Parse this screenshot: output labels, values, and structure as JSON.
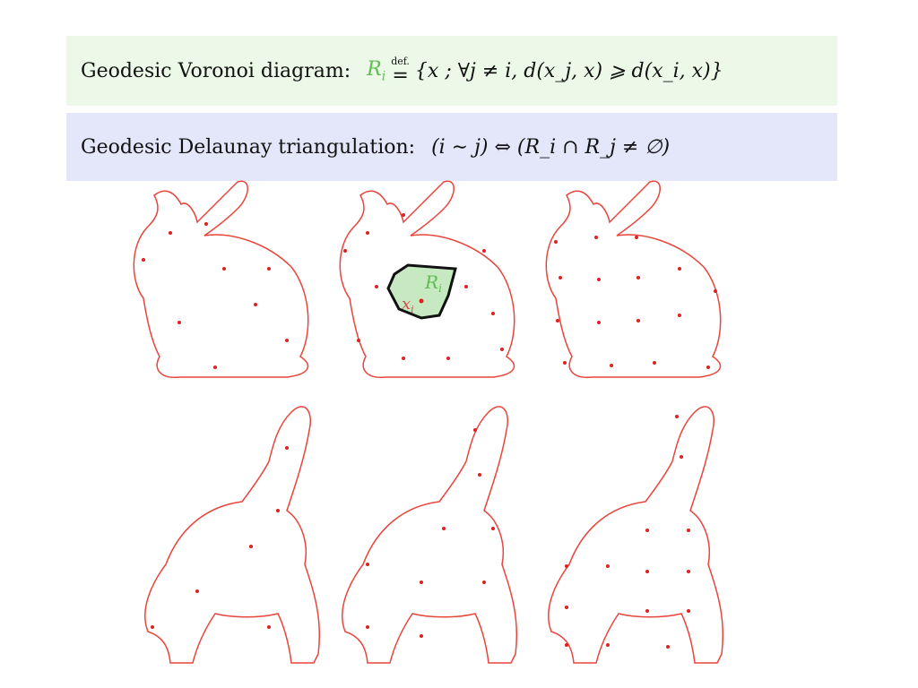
{
  "voronoi": {
    "label": "Geodesic Voronoi diagram:",
    "symbol": "R",
    "symbol_sub": "i",
    "def_label": "def.",
    "eq": "=",
    "set_expr": "{x ; ∀j ≠ i, d(x_j, x) ⩾ d(x_i, x)}"
  },
  "delaunay": {
    "label": "Geodesic Delaunay triangulation:",
    "expr": "(i ∼ j) ⇔ (R_i ∩ R_j ≠ ∅)"
  },
  "annotation": {
    "region_label": "R",
    "region_sub": "i",
    "point_label": "x",
    "point_sub": "i"
  },
  "colors": {
    "voronoi_box": "#ecf9e8",
    "delaunay_box": "#e4e6f9",
    "highlight": "#5cbf4f",
    "cell_border": "#e8453c",
    "sample_point": "#e02020"
  },
  "figures": {
    "rows": [
      "bunny",
      "elephant"
    ],
    "columns": 3
  }
}
